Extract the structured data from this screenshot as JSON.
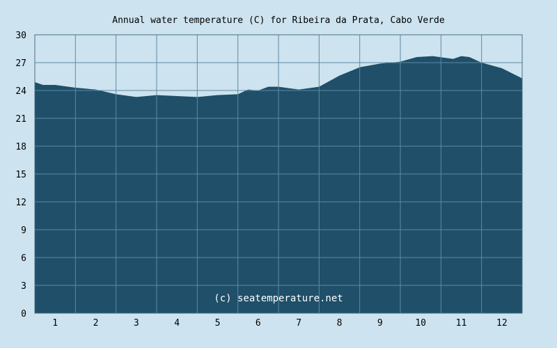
{
  "chart_data": {
    "type": "area",
    "title": "Annual water temperature (C) for Ribeira da Prata, Cabo Verde",
    "xlabel": "",
    "ylabel": "",
    "categories": [
      "1",
      "2",
      "3",
      "4",
      "5",
      "6",
      "7",
      "8",
      "9",
      "10",
      "11",
      "12"
    ],
    "ylim": [
      0,
      30
    ],
    "yticks": [
      "0",
      "3",
      "6",
      "9",
      "12",
      "15",
      "18",
      "21",
      "24",
      "27",
      "30"
    ],
    "grid": true,
    "x": [
      0.0,
      0.2,
      0.5,
      1.0,
      1.5,
      2.0,
      2.5,
      3.0,
      3.5,
      4.0,
      4.5,
      5.0,
      5.25,
      5.5,
      5.75,
      6.0,
      6.5,
      7.0,
      7.5,
      8.0,
      8.5,
      9.0,
      9.4,
      9.8,
      10.3,
      10.5,
      10.7,
      11.0,
      11.5,
      12.0
    ],
    "values": [
      24.9,
      24.6,
      24.6,
      24.3,
      24.1,
      23.6,
      23.3,
      23.5,
      23.4,
      23.3,
      23.5,
      23.6,
      24.1,
      24.0,
      24.4,
      24.4,
      24.1,
      24.4,
      25.6,
      26.5,
      26.9,
      27.1,
      27.6,
      27.7,
      27.4,
      27.7,
      27.6,
      27.0,
      26.4,
      25.3
    ],
    "colors": {
      "fill": "#1f4f69",
      "grid": "#5f8aa3",
      "background": "#cde3ef",
      "axis": "#4a6f86"
    }
  },
  "watermark": "(c) seatemperature.net"
}
